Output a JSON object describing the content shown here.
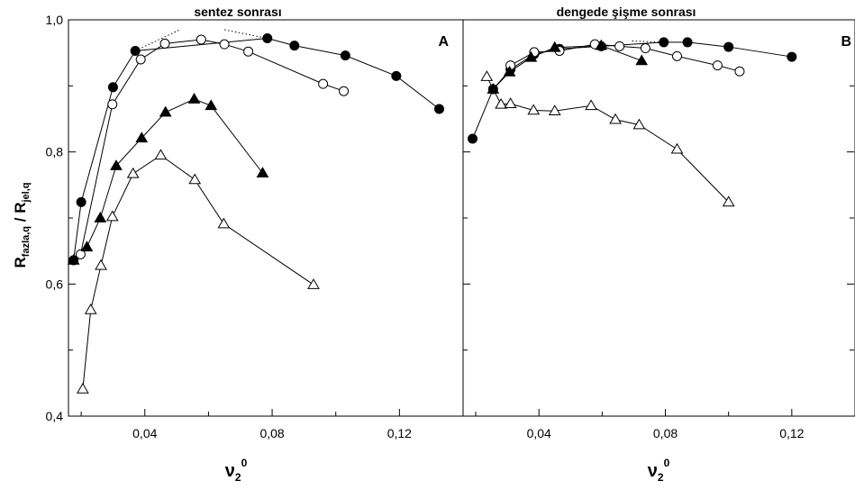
{
  "chart_data": [
    {
      "type": "line",
      "title": "sentez sonrası",
      "panel_label": "A",
      "xlabel": "ν20",
      "ylabel": "Rfazla,q / Rjel,q",
      "xlim": [
        0.016,
        0.14
      ],
      "ylim": [
        0.4,
        1.0
      ],
      "x_ticks": [
        0.04,
        0.08,
        0.12
      ],
      "x_tick_labels": [
        "0,04",
        "0,08",
        "0,12"
      ],
      "y_ticks": [
        0.4,
        0.6,
        0.8,
        1.0
      ],
      "y_tick_labels": [
        "0,4",
        "0,6",
        "0,8",
        "1,0"
      ],
      "grid": false,
      "series": [
        {
          "marker": "filled-circle",
          "points": [
            [
              0.0176,
              0.636
            ],
            [
              0.02,
              0.724
            ],
            [
              0.03,
              0.898
            ],
            [
              0.037,
              0.953
            ],
            [
              0.0785,
              0.972
            ],
            [
              0.087,
              0.961
            ],
            [
              0.103,
              0.946
            ],
            [
              0.119,
              0.915
            ],
            [
              0.1325,
              0.865
            ]
          ]
        },
        {
          "marker": "open-circle",
          "points": [
            [
              0.0198,
              0.645
            ],
            [
              0.0298,
              0.872
            ],
            [
              0.0387,
              0.94
            ],
            [
              0.0463,
              0.964
            ],
            [
              0.0577,
              0.97
            ],
            [
              0.065,
              0.963
            ],
            [
              0.0725,
              0.952
            ],
            [
              0.096,
              0.903
            ],
            [
              0.1025,
              0.892
            ]
          ]
        },
        {
          "marker": "filled-triangle",
          "points": [
            [
              0.0176,
              0.636
            ],
            [
              0.0218,
              0.656
            ],
            [
              0.026,
              0.7
            ],
            [
              0.031,
              0.779
            ],
            [
              0.039,
              0.821
            ],
            [
              0.0465,
              0.86
            ],
            [
              0.0555,
              0.88
            ],
            [
              0.0608,
              0.87
            ],
            [
              0.077,
              0.768
            ]
          ]
        },
        {
          "marker": "open-triangle",
          "points": [
            [
              0.0205,
              0.441
            ],
            [
              0.023,
              0.561
            ],
            [
              0.0262,
              0.628
            ],
            [
              0.0298,
              0.702
            ],
            [
              0.0363,
              0.767
            ],
            [
              0.045,
              0.795
            ],
            [
              0.0557,
              0.758
            ],
            [
              0.0648,
              0.691
            ],
            [
              0.093,
              0.599
            ]
          ]
        }
      ],
      "dotted_segments": [
        [
          [
            0.037,
            0.953
          ],
          [
            0.051,
            0.985
          ]
        ],
        [
          [
            0.065,
            0.985
          ],
          [
            0.0785,
            0.972
          ]
        ]
      ]
    },
    {
      "type": "line",
      "title": "dengede şişme sonrası",
      "panel_label": "B",
      "xlabel": "ν20",
      "xlim": [
        0.016,
        0.14
      ],
      "ylim": [
        0.4,
        1.0
      ],
      "x_ticks": [
        0.04,
        0.08,
        0.12
      ],
      "x_tick_labels": [
        "0,04",
        "0,08",
        "0,12"
      ],
      "grid": false,
      "series": [
        {
          "marker": "filled-circle",
          "points": [
            [
              0.019,
              0.82
            ],
            [
              0.0255,
              0.895
            ],
            [
              0.031,
              0.925
            ],
            [
              0.0385,
              0.948
            ],
            [
              0.0465,
              0.956
            ],
            [
              0.0597,
              0.96
            ],
            [
              0.0795,
              0.966
            ],
            [
              0.087,
              0.966
            ],
            [
              0.1,
              0.959
            ],
            [
              0.12,
              0.944
            ]
          ]
        },
        {
          "marker": "open-circle",
          "points": [
            [
              0.031,
              0.931
            ],
            [
              0.0385,
              0.951
            ],
            [
              0.0465,
              0.953
            ],
            [
              0.0577,
              0.963
            ],
            [
              0.0655,
              0.96
            ],
            [
              0.0737,
              0.957
            ],
            [
              0.0837,
              0.945
            ],
            [
              0.0965,
              0.931
            ],
            [
              0.1035,
              0.922
            ]
          ]
        },
        {
          "marker": "filled-triangle",
          "points": [
            [
              0.0255,
              0.895
            ],
            [
              0.0307,
              0.921
            ],
            [
              0.0375,
              0.943
            ],
            [
              0.045,
              0.958
            ],
            [
              0.0597,
              0.961
            ],
            [
              0.0725,
              0.938
            ]
          ]
        },
        {
          "marker": "open-triangle",
          "points": [
            [
              0.0235,
              0.914
            ],
            [
              0.028,
              0.872
            ],
            [
              0.031,
              0.873
            ],
            [
              0.0383,
              0.863
            ],
            [
              0.045,
              0.862
            ],
            [
              0.0565,
              0.87
            ],
            [
              0.0642,
              0.849
            ],
            [
              0.0717,
              0.841
            ],
            [
              0.0837,
              0.804
            ],
            [
              0.1,
              0.724
            ]
          ]
        }
      ],
      "dotted_segments": [
        [
          [
            0.0695,
            0.968
          ],
          [
            0.0795,
            0.966
          ]
        ]
      ]
    }
  ]
}
